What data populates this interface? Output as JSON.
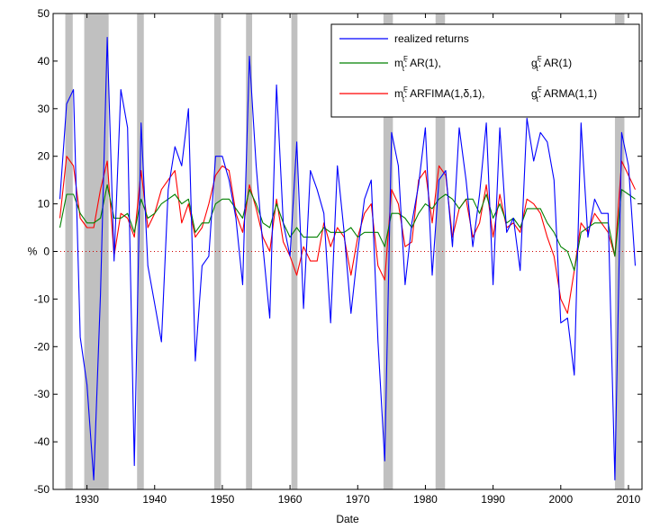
{
  "chart_data": {
    "type": "line",
    "xlabel": "Date",
    "ylabel": "%",
    "xlim": [
      1925,
      2012
    ],
    "ylim": [
      -50,
      50
    ],
    "xticks": [
      1930,
      1940,
      1950,
      1960,
      1970,
      1980,
      1990,
      2000,
      2010
    ],
    "yticks": [
      -50,
      -40,
      -30,
      -20,
      -10,
      0,
      10,
      20,
      30,
      40,
      50
    ],
    "zero_line": {
      "y": 0,
      "color": "#cc0000",
      "style": "dotted"
    },
    "recession_shading": {
      "color": "#c0c0c0",
      "periods": [
        [
          1926.8,
          1927.9
        ],
        [
          1929.6,
          1933.2
        ],
        [
          1937.4,
          1938.4
        ],
        [
          1948.8,
          1949.8
        ],
        [
          1953.5,
          1954.4
        ],
        [
          1960.2,
          1961.1
        ],
        [
          1973.8,
          1975.2
        ],
        [
          1981.5,
          1982.9
        ],
        [
          2008.0,
          2009.4
        ]
      ]
    },
    "legend": {
      "position": "top-right",
      "entries": [
        {
          "key": "realized",
          "color": "#0000ff",
          "text": "realized returns"
        },
        {
          "key": "ar",
          "color": "#008000",
          "m_label": "m",
          "m_sup": "F",
          "m_sub": "t",
          "m_text": ": AR(1),",
          "g_label": "g",
          "g_sup": "F",
          "g_sub": "t",
          "g_text": ": AR(1)"
        },
        {
          "key": "arfima",
          "color": "#ff0000",
          "m_label": "m",
          "m_sup": "F",
          "m_sub": "t",
          "m_text": ": ARFIMA(1,δ,1),",
          "g_label": "g",
          "g_sup": "F",
          "g_sub": "t",
          "g_text": ": ARMA(1,1)"
        }
      ]
    },
    "series": [
      {
        "name": "realized returns",
        "color": "#0000ff",
        "x": [
          1926,
          1927,
          1928,
          1929,
          1930,
          1931,
          1932,
          1933,
          1934,
          1935,
          1936,
          1937,
          1938,
          1939,
          1940,
          1941,
          1942,
          1943,
          1944,
          1945,
          1946,
          1947,
          1948,
          1949,
          1950,
          1951,
          1952,
          1953,
          1954,
          1955,
          1956,
          1957,
          1958,
          1959,
          1960,
          1961,
          1962,
          1963,
          1964,
          1965,
          1966,
          1967,
          1968,
          1969,
          1970,
          1971,
          1972,
          1973,
          1974,
          1975,
          1976,
          1977,
          1978,
          1979,
          1980,
          1981,
          1982,
          1983,
          1984,
          1985,
          1986,
          1987,
          1988,
          1989,
          1990,
          1991,
          1992,
          1993,
          1994,
          1995,
          1996,
          1997,
          1998,
          1999,
          2000,
          2001,
          2002,
          2003,
          2004,
          2005,
          2006,
          2007,
          2008,
          2009,
          2010,
          2011
        ],
        "values": [
          11,
          31,
          34,
          -18,
          -28,
          -48,
          -9,
          45,
          -2,
          34,
          26,
          -45,
          27,
          -3,
          -11,
          -19,
          13,
          22,
          18,
          30,
          -23,
          -3,
          -1,
          20,
          20,
          15,
          7,
          -7,
          41,
          18,
          1,
          -14,
          35,
          6,
          -1,
          23,
          -12,
          17,
          13,
          8,
          -15,
          18,
          4,
          -13,
          0,
          11,
          15,
          -19,
          -44,
          25,
          18,
          -7,
          6,
          14,
          26,
          -5,
          15,
          17,
          1,
          26,
          15,
          1,
          12,
          27,
          -7,
          26,
          4,
          7,
          -4,
          28,
          19,
          25,
          23,
          15,
          -15,
          -14,
          -26,
          27,
          3,
          11,
          8,
          8,
          -48,
          25,
          18,
          -3
        ]
      },
      {
        "name": "AR(1)",
        "color": "#008000",
        "x": [
          1926,
          1927,
          1928,
          1929,
          1930,
          1931,
          1932,
          1933,
          1934,
          1935,
          1936,
          1937,
          1938,
          1939,
          1940,
          1941,
          1942,
          1943,
          1944,
          1945,
          1946,
          1947,
          1948,
          1949,
          1950,
          1951,
          1952,
          1953,
          1954,
          1955,
          1956,
          1957,
          1958,
          1959,
          1960,
          1961,
          1962,
          1963,
          1964,
          1965,
          1966,
          1967,
          1968,
          1969,
          1970,
          1971,
          1972,
          1973,
          1974,
          1975,
          1976,
          1977,
          1978,
          1979,
          1980,
          1981,
          1982,
          1983,
          1984,
          1985,
          1986,
          1987,
          1988,
          1989,
          1990,
          1991,
          1992,
          1993,
          1994,
          1995,
          1996,
          1997,
          1998,
          1999,
          2000,
          2001,
          2002,
          2003,
          2004,
          2005,
          2006,
          2007,
          2008,
          2009,
          2010,
          2011
        ],
        "values": [
          5,
          12,
          12,
          8,
          6,
          6,
          7,
          14,
          7,
          7,
          8,
          4,
          11,
          7,
          8,
          10,
          11,
          12,
          10,
          11,
          4,
          6,
          6,
          10,
          11,
          11,
          9,
          7,
          13,
          10,
          6,
          5,
          10,
          6,
          3,
          5,
          3,
          3,
          3,
          5,
          4,
          4,
          4,
          5,
          3,
          4,
          4,
          4,
          1,
          8,
          8,
          7,
          5,
          8,
          10,
          9,
          11,
          12,
          11,
          9,
          11,
          11,
          8,
          12,
          7,
          10,
          6,
          7,
          5,
          9,
          9,
          9,
          6,
          4,
          1,
          0,
          -4,
          4,
          5,
          6,
          6,
          6,
          -1,
          13,
          12,
          11
        ]
      },
      {
        "name": "ARFIMA",
        "color": "#ff0000",
        "x": [
          1926,
          1927,
          1928,
          1929,
          1930,
          1931,
          1932,
          1933,
          1934,
          1935,
          1936,
          1937,
          1938,
          1939,
          1940,
          1941,
          1942,
          1943,
          1944,
          1945,
          1946,
          1947,
          1948,
          1949,
          1950,
          1951,
          1952,
          1953,
          1954,
          1955,
          1956,
          1957,
          1958,
          1959,
          1960,
          1961,
          1962,
          1963,
          1964,
          1965,
          1966,
          1967,
          1968,
          1969,
          1970,
          1971,
          1972,
          1973,
          1974,
          1975,
          1976,
          1977,
          1978,
          1979,
          1980,
          1981,
          1982,
          1983,
          1984,
          1985,
          1986,
          1987,
          1988,
          1989,
          1990,
          1991,
          1992,
          1993,
          1994,
          1995,
          1996,
          1997,
          1998,
          1999,
          2000,
          2001,
          2002,
          2003,
          2004,
          2005,
          2006,
          2007,
          2008,
          2009,
          2010,
          2011
        ],
        "values": [
          7,
          20,
          18,
          7,
          5,
          5,
          13,
          19,
          -1,
          8,
          7,
          3,
          17,
          5,
          8,
          13,
          15,
          17,
          6,
          10,
          3,
          5,
          10,
          16,
          18,
          17,
          8,
          4,
          14,
          9,
          3,
          0,
          11,
          2,
          -1,
          -5,
          1,
          -2,
          -2,
          6,
          1,
          5,
          3,
          -5,
          3,
          8,
          10,
          -3,
          -6,
          13,
          10,
          1,
          2,
          15,
          17,
          6,
          18,
          16,
          3,
          9,
          11,
          3,
          6,
          14,
          3,
          12,
          5,
          6,
          4,
          11,
          10,
          8,
          3,
          -1,
          -10,
          -13,
          -4,
          6,
          4,
          8,
          6,
          4,
          -1,
          19,
          16,
          13
        ]
      }
    ]
  }
}
